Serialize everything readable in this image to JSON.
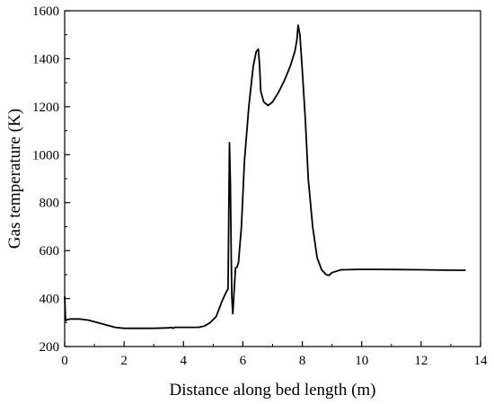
{
  "chart_data": {
    "type": "line",
    "title": "",
    "xlabel": "Distance along bed length (m)",
    "ylabel": "Gas temperature (K)",
    "xlim": [
      0,
      14
    ],
    "ylim": [
      200,
      1600
    ],
    "xticks": [
      0,
      2,
      4,
      6,
      8,
      10,
      12,
      14
    ],
    "yticks": [
      200,
      400,
      600,
      800,
      1000,
      1200,
      1400,
      1600
    ],
    "grid": false,
    "legend": "none",
    "line_color": "#000000",
    "series": [
      {
        "x": [
          0,
          0.03,
          0.08,
          0.2,
          0.5,
          0.8,
          1.1,
          1.4,
          1.7,
          2.0,
          2.5,
          3.0,
          3.5,
          3.6,
          3.65,
          3.7,
          4.0,
          4.5,
          4.7,
          4.9,
          5.1,
          5.3,
          5.45,
          5.5,
          5.55,
          5.58,
          5.61,
          5.63,
          5.66,
          5.7,
          5.75,
          5.8,
          5.85,
          5.95,
          6.05,
          6.2,
          6.35,
          6.45,
          6.52,
          6.56,
          6.6,
          6.7,
          6.85,
          7.0,
          7.2,
          7.4,
          7.6,
          7.75,
          7.82,
          7.86,
          7.92,
          8.0,
          8.1,
          8.2,
          8.35,
          8.5,
          8.65,
          8.8,
          8.9,
          9.0,
          9.3,
          10.0,
          11.0,
          12.0,
          13.0,
          13.5
        ],
        "y": [
          410,
          308,
          312,
          315,
          315,
          310,
          300,
          290,
          280,
          276,
          276,
          276,
          278,
          280,
          276,
          280,
          280,
          280,
          285,
          300,
          325,
          390,
          430,
          440,
          1050,
          880,
          560,
          400,
          337,
          420,
          528,
          530,
          550,
          700,
          970,
          1200,
          1370,
          1430,
          1440,
          1380,
          1265,
          1220,
          1205,
          1220,
          1260,
          1310,
          1370,
          1430,
          1480,
          1540,
          1500,
          1350,
          1150,
          900,
          700,
          570,
          520,
          500,
          497,
          508,
          520,
          522,
          521,
          520,
          518,
          518
        ]
      }
    ]
  }
}
